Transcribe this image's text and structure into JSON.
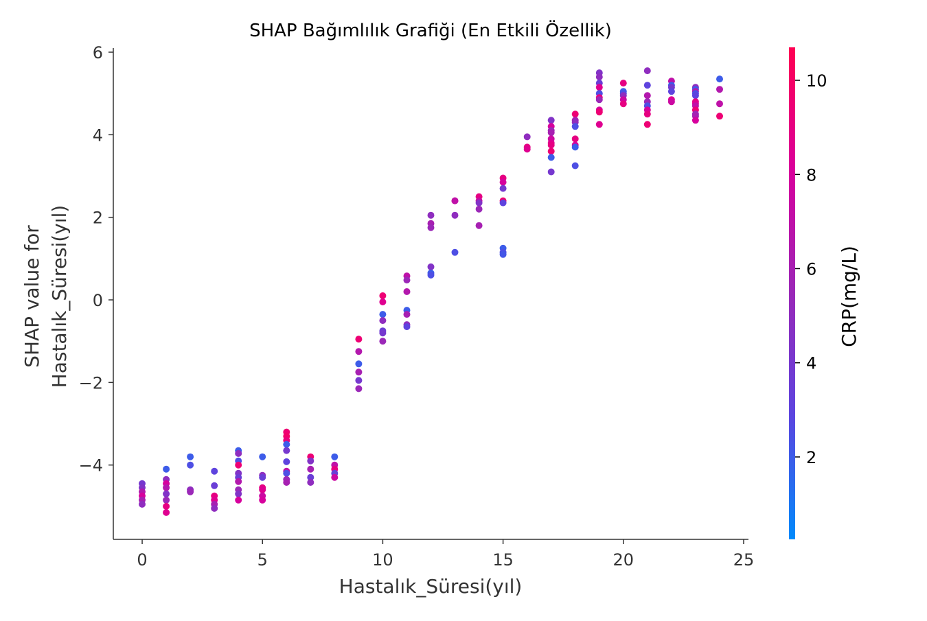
{
  "chart_data": {
    "type": "scatter",
    "title": "SHAP Bağımlılık Grafiği (En Etkili Özellik)",
    "xlabel": "Hastalık_Süresi(yıl)",
    "ylabel_lines": [
      "SHAP value for",
      "Hastalık_Süresi(yıl)"
    ],
    "xlim": [
      -1.2,
      25.2
    ],
    "ylim": [
      -5.8,
      6.1
    ],
    "xticks": [
      0,
      5,
      10,
      15,
      20,
      25
    ],
    "xtick_labels": [
      "0",
      "5",
      "10",
      "15",
      "20",
      "25"
    ],
    "yticks": [
      -4,
      -2,
      0,
      2,
      4,
      6
    ],
    "ytick_labels": [
      "−4",
      "−2",
      "0",
      "2",
      "4",
      "6"
    ],
    "grid": false,
    "colorbar": {
      "label": "CRP(mg/L)",
      "min": 0.25,
      "max": 10.7,
      "ticks": [
        2,
        4,
        6,
        8,
        10
      ],
      "tick_labels": [
        "2",
        "4",
        "6",
        "8",
        "10"
      ],
      "colors": [
        "#008afb",
        "#5b45e0",
        "#9a28b8",
        "#d9009c",
        "#ff0052"
      ]
    },
    "points": [
      [
        0,
        -4.45,
        4.0
      ],
      [
        0,
        -4.55,
        4.5
      ],
      [
        0,
        -4.65,
        6.5
      ],
      [
        0,
        -4.75,
        8.0
      ],
      [
        0,
        -4.85,
        6.0
      ],
      [
        0,
        -4.95,
        5.0
      ],
      [
        1,
        -4.1,
        2.0
      ],
      [
        1,
        -4.35,
        5.0
      ],
      [
        1,
        -4.45,
        8.0
      ],
      [
        1,
        -4.55,
        6.5
      ],
      [
        1,
        -4.7,
        4.5
      ],
      [
        1,
        -4.85,
        5.5
      ],
      [
        1,
        -5.0,
        9.0
      ],
      [
        1,
        -5.15,
        8.5
      ],
      [
        2,
        -3.8,
        2.0
      ],
      [
        2,
        -4.0,
        2.5
      ],
      [
        2,
        -4.6,
        5.0
      ],
      [
        2,
        -4.65,
        5.5
      ],
      [
        3,
        -4.15,
        3.0
      ],
      [
        3,
        -4.5,
        3.5
      ],
      [
        3,
        -4.75,
        9.0
      ],
      [
        3,
        -4.85,
        8.5
      ],
      [
        3,
        -4.95,
        6.0
      ],
      [
        3,
        -5.05,
        5.0
      ],
      [
        4,
        -3.65,
        2.0
      ],
      [
        4,
        -3.72,
        5.0
      ],
      [
        4,
        -3.9,
        2.5
      ],
      [
        4,
        -4.0,
        9.5
      ],
      [
        4,
        -4.2,
        4.5
      ],
      [
        4,
        -4.3,
        3.5
      ],
      [
        4,
        -4.4,
        6.5
      ],
      [
        4,
        -4.6,
        5.5
      ],
      [
        4,
        -4.7,
        4.5
      ],
      [
        4,
        -4.85,
        8.0
      ],
      [
        5,
        -3.8,
        2.0
      ],
      [
        5,
        -4.25,
        5.0
      ],
      [
        5,
        -4.3,
        3.5
      ],
      [
        5,
        -4.55,
        9.0
      ],
      [
        5,
        -4.6,
        8.5
      ],
      [
        5,
        -4.75,
        7.5
      ],
      [
        5,
        -4.85,
        8.0
      ],
      [
        6,
        -3.2,
        9.5
      ],
      [
        6,
        -3.3,
        9.8
      ],
      [
        6,
        -3.4,
        9.2
      ],
      [
        6,
        -3.5,
        2.0
      ],
      [
        6,
        -3.65,
        4.0
      ],
      [
        6,
        -3.92,
        3.0
      ],
      [
        6,
        -4.15,
        7.0
      ],
      [
        6,
        -4.2,
        2.5
      ],
      [
        6,
        -4.35,
        5.5
      ],
      [
        6,
        -4.42,
        6.0
      ],
      [
        7,
        -3.8,
        9.5
      ],
      [
        7,
        -3.9,
        4.5
      ],
      [
        7,
        -4.1,
        6.0
      ],
      [
        7,
        -4.3,
        3.5
      ],
      [
        7,
        -4.42,
        5.0
      ],
      [
        8,
        -3.8,
        2.0
      ],
      [
        8,
        -4.0,
        7.0
      ],
      [
        8,
        -4.1,
        9.0
      ],
      [
        8,
        -4.2,
        3.5
      ],
      [
        8,
        -4.3,
        7.5
      ],
      [
        9,
        -0.95,
        9.5
      ],
      [
        9,
        -1.25,
        6.5
      ],
      [
        9,
        -1.55,
        2.0
      ],
      [
        9,
        -1.75,
        6.0
      ],
      [
        9,
        -1.95,
        4.0
      ],
      [
        9,
        -2.15,
        5.5
      ],
      [
        10,
        0.1,
        9.5
      ],
      [
        10,
        -0.05,
        8.5
      ],
      [
        10,
        -0.35,
        2.0
      ],
      [
        10,
        -0.5,
        5.0
      ],
      [
        10,
        -0.75,
        3.5
      ],
      [
        10,
        -0.8,
        4.0
      ],
      [
        10,
        -1.0,
        5.5
      ],
      [
        11,
        0.58,
        7.0
      ],
      [
        11,
        0.48,
        5.5
      ],
      [
        11,
        0.2,
        6.5
      ],
      [
        11,
        -0.25,
        2.0
      ],
      [
        11,
        -0.35,
        6.0
      ],
      [
        11,
        -0.6,
        5.0
      ],
      [
        11,
        -0.65,
        3.0
      ],
      [
        12,
        2.05,
        5.0
      ],
      [
        12,
        1.85,
        6.0
      ],
      [
        12,
        1.75,
        5.5
      ],
      [
        12,
        0.8,
        4.5
      ],
      [
        12,
        0.65,
        2.0
      ],
      [
        12,
        0.6,
        2.5
      ],
      [
        13,
        2.4,
        8.5
      ],
      [
        13,
        2.4,
        7.0
      ],
      [
        13,
        2.05,
        5.0
      ],
      [
        13,
        1.15,
        2.5
      ],
      [
        14,
        2.5,
        9.0
      ],
      [
        14,
        2.4,
        7.5
      ],
      [
        14,
        2.35,
        4.5
      ],
      [
        14,
        2.2,
        5.5
      ],
      [
        14,
        1.8,
        6.0
      ],
      [
        15,
        2.95,
        9.0
      ],
      [
        15,
        2.85,
        8.0
      ],
      [
        15,
        2.7,
        4.0
      ],
      [
        15,
        2.4,
        9.5
      ],
      [
        15,
        2.35,
        3.0
      ],
      [
        15,
        1.25,
        2.0
      ],
      [
        15,
        1.15,
        2.5
      ],
      [
        15,
        1.1,
        2.2
      ],
      [
        16,
        3.95,
        5.0
      ],
      [
        16,
        3.7,
        9.0
      ],
      [
        16,
        3.65,
        8.5
      ],
      [
        17,
        4.35,
        4.5
      ],
      [
        17,
        4.2,
        8.0
      ],
      [
        17,
        4.1,
        5.5
      ],
      [
        17,
        4.05,
        6.0
      ],
      [
        17,
        3.9,
        7.5
      ],
      [
        17,
        3.8,
        8.5
      ],
      [
        17,
        3.75,
        9.0
      ],
      [
        17,
        3.6,
        9.5
      ],
      [
        17,
        3.45,
        2.0
      ],
      [
        17,
        3.1,
        4.0
      ],
      [
        18,
        4.5,
        9.5
      ],
      [
        18,
        4.35,
        6.0
      ],
      [
        18,
        4.3,
        5.0
      ],
      [
        18,
        4.2,
        2.5
      ],
      [
        18,
        3.9,
        9.0
      ],
      [
        18,
        3.75,
        8.0
      ],
      [
        18,
        3.7,
        2.0
      ],
      [
        18,
        3.25,
        2.5
      ],
      [
        19,
        5.5,
        4.5
      ],
      [
        19,
        5.4,
        5.0
      ],
      [
        19,
        5.25,
        3.5
      ],
      [
        19,
        5.15,
        8.5
      ],
      [
        19,
        5.0,
        2.5
      ],
      [
        19,
        4.9,
        9.0
      ],
      [
        19,
        4.85,
        5.5
      ],
      [
        19,
        4.6,
        8.0
      ],
      [
        19,
        4.55,
        9.5
      ],
      [
        19,
        4.25,
        8.5
      ],
      [
        20,
        5.25,
        9.0
      ],
      [
        20,
        5.05,
        2.0
      ],
      [
        20,
        5.0,
        2.5
      ],
      [
        20,
        4.95,
        5.0
      ],
      [
        20,
        4.85,
        7.5
      ],
      [
        20,
        4.75,
        9.0
      ],
      [
        21,
        5.55,
        5.0
      ],
      [
        21,
        5.2,
        3.0
      ],
      [
        21,
        4.95,
        6.5
      ],
      [
        21,
        4.8,
        5.5
      ],
      [
        21,
        4.7,
        2.5
      ],
      [
        21,
        4.6,
        8.0
      ],
      [
        21,
        4.5,
        9.0
      ],
      [
        21,
        4.25,
        9.5
      ],
      [
        22,
        5.3,
        7.0
      ],
      [
        22,
        5.2,
        2.0
      ],
      [
        22,
        5.15,
        4.0
      ],
      [
        22,
        5.05,
        3.0
      ],
      [
        22,
        4.85,
        8.5
      ],
      [
        22,
        4.8,
        7.5
      ],
      [
        23,
        5.15,
        5.0
      ],
      [
        23,
        5.1,
        2.0
      ],
      [
        23,
        5.05,
        6.5
      ],
      [
        23,
        5.0,
        2.5
      ],
      [
        23,
        4.95,
        3.0
      ],
      [
        23,
        4.8,
        9.0
      ],
      [
        23,
        4.75,
        8.5
      ],
      [
        23,
        4.7,
        7.0
      ],
      [
        23,
        4.6,
        9.5
      ],
      [
        23,
        4.5,
        5.5
      ],
      [
        23,
        4.45,
        6.0
      ],
      [
        23,
        4.35,
        8.0
      ],
      [
        24,
        5.35,
        2.0
      ],
      [
        24,
        5.1,
        6.5
      ],
      [
        24,
        4.75,
        7.0
      ],
      [
        24,
        4.45,
        9.5
      ]
    ]
  }
}
